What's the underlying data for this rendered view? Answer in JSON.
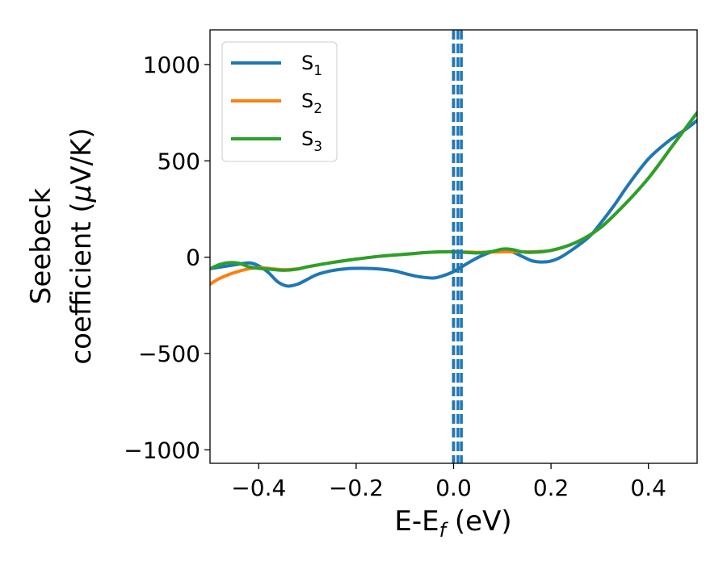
{
  "chart_data": {
    "type": "line",
    "title": "",
    "xlabel": "E-E",
    "xlabel_subscript": "f",
    "xlabel_unit": " (eV)",
    "ylabel_line1": "Seebeck",
    "ylabel_line2": "coefficient  (",
    "ylabel_mu": "μ",
    "ylabel_unit": "V/K)",
    "xlim": [
      -0.5,
      0.5
    ],
    "ylim": [
      -1070,
      1180
    ],
    "x_ticks": [
      -0.4,
      -0.2,
      0.0,
      0.2,
      0.4
    ],
    "x_tick_labels": [
      "−0.4",
      "−0.2",
      "0.0",
      "0.2",
      "0.4"
    ],
    "y_ticks": [
      -1000,
      -500,
      0,
      500,
      1000
    ],
    "y_tick_labels": [
      "−1000",
      "−500",
      "0",
      "500",
      "1000"
    ],
    "grid": false,
    "legend_position": "top-left",
    "vertical_lines": [
      {
        "x": 0.0,
        "color": "#000000",
        "style": "dashed"
      },
      {
        "x": 0.0,
        "color": "#1f77b4",
        "style": "dashed"
      },
      {
        "x": 0.009,
        "color": "#1f77b4",
        "style": "dashed"
      },
      {
        "x": 0.016,
        "color": "#1f77b4",
        "style": "dashed"
      }
    ],
    "series": [
      {
        "name": "S",
        "subscript": "1",
        "color": "#1f77b4",
        "x": [
          -0.5,
          -0.45,
          -0.42,
          -0.4,
          -0.38,
          -0.36,
          -0.34,
          -0.32,
          -0.3,
          -0.28,
          -0.25,
          -0.22,
          -0.18,
          -0.15,
          -0.12,
          -0.1,
          -0.08,
          -0.06,
          -0.04,
          -0.02,
          0.0,
          0.02,
          0.04,
          0.06,
          0.08,
          0.1,
          0.12,
          0.14,
          0.16,
          0.18,
          0.2,
          0.22,
          0.25,
          0.28,
          0.3,
          0.33,
          0.36,
          0.4,
          0.44,
          0.48,
          0.5
        ],
        "y": [
          -60,
          -40,
          -30,
          -45,
          -80,
          -130,
          -150,
          -140,
          -115,
          -90,
          -70,
          -60,
          -58,
          -62,
          -72,
          -85,
          -97,
          -105,
          -108,
          -95,
          -75,
          -45,
          -15,
          10,
          28,
          35,
          28,
          5,
          -18,
          -25,
          -20,
          0,
          50,
          110,
          170,
          270,
          380,
          510,
          600,
          670,
          710
        ]
      },
      {
        "name": "S",
        "subscript": "2",
        "color": "#ff7f0e",
        "x": [
          -0.5,
          -0.48,
          -0.45,
          -0.42,
          -0.4,
          -0.38,
          -0.35,
          -0.32,
          -0.3,
          -0.25,
          -0.2,
          -0.15,
          -0.1,
          -0.05,
          0.0,
          0.05,
          0.1,
          0.15,
          0.2,
          0.25,
          0.3,
          0.35,
          0.4,
          0.45,
          0.5
        ],
        "y": [
          -140,
          -110,
          -80,
          -60,
          -55,
          -58,
          -65,
          -60,
          -50,
          -28,
          -10,
          5,
          15,
          25,
          28,
          25,
          28,
          28,
          35,
          75,
          150,
          270,
          410,
          580,
          750
        ]
      },
      {
        "name": "S",
        "subscript": "3",
        "color": "#2ca02c",
        "x": [
          -0.5,
          -0.48,
          -0.46,
          -0.44,
          -0.42,
          -0.4,
          -0.38,
          -0.35,
          -0.32,
          -0.3,
          -0.25,
          -0.2,
          -0.15,
          -0.1,
          -0.05,
          0.0,
          0.05,
          0.08,
          0.1,
          0.12,
          0.14,
          0.16,
          0.2,
          0.25,
          0.3,
          0.35,
          0.4,
          0.45,
          0.5
        ],
        "y": [
          -60,
          -38,
          -28,
          -32,
          -50,
          -58,
          -62,
          -68,
          -62,
          -50,
          -28,
          -10,
          5,
          15,
          25,
          28,
          22,
          30,
          42,
          40,
          28,
          25,
          35,
          75,
          150,
          270,
          410,
          580,
          750
        ]
      }
    ]
  }
}
